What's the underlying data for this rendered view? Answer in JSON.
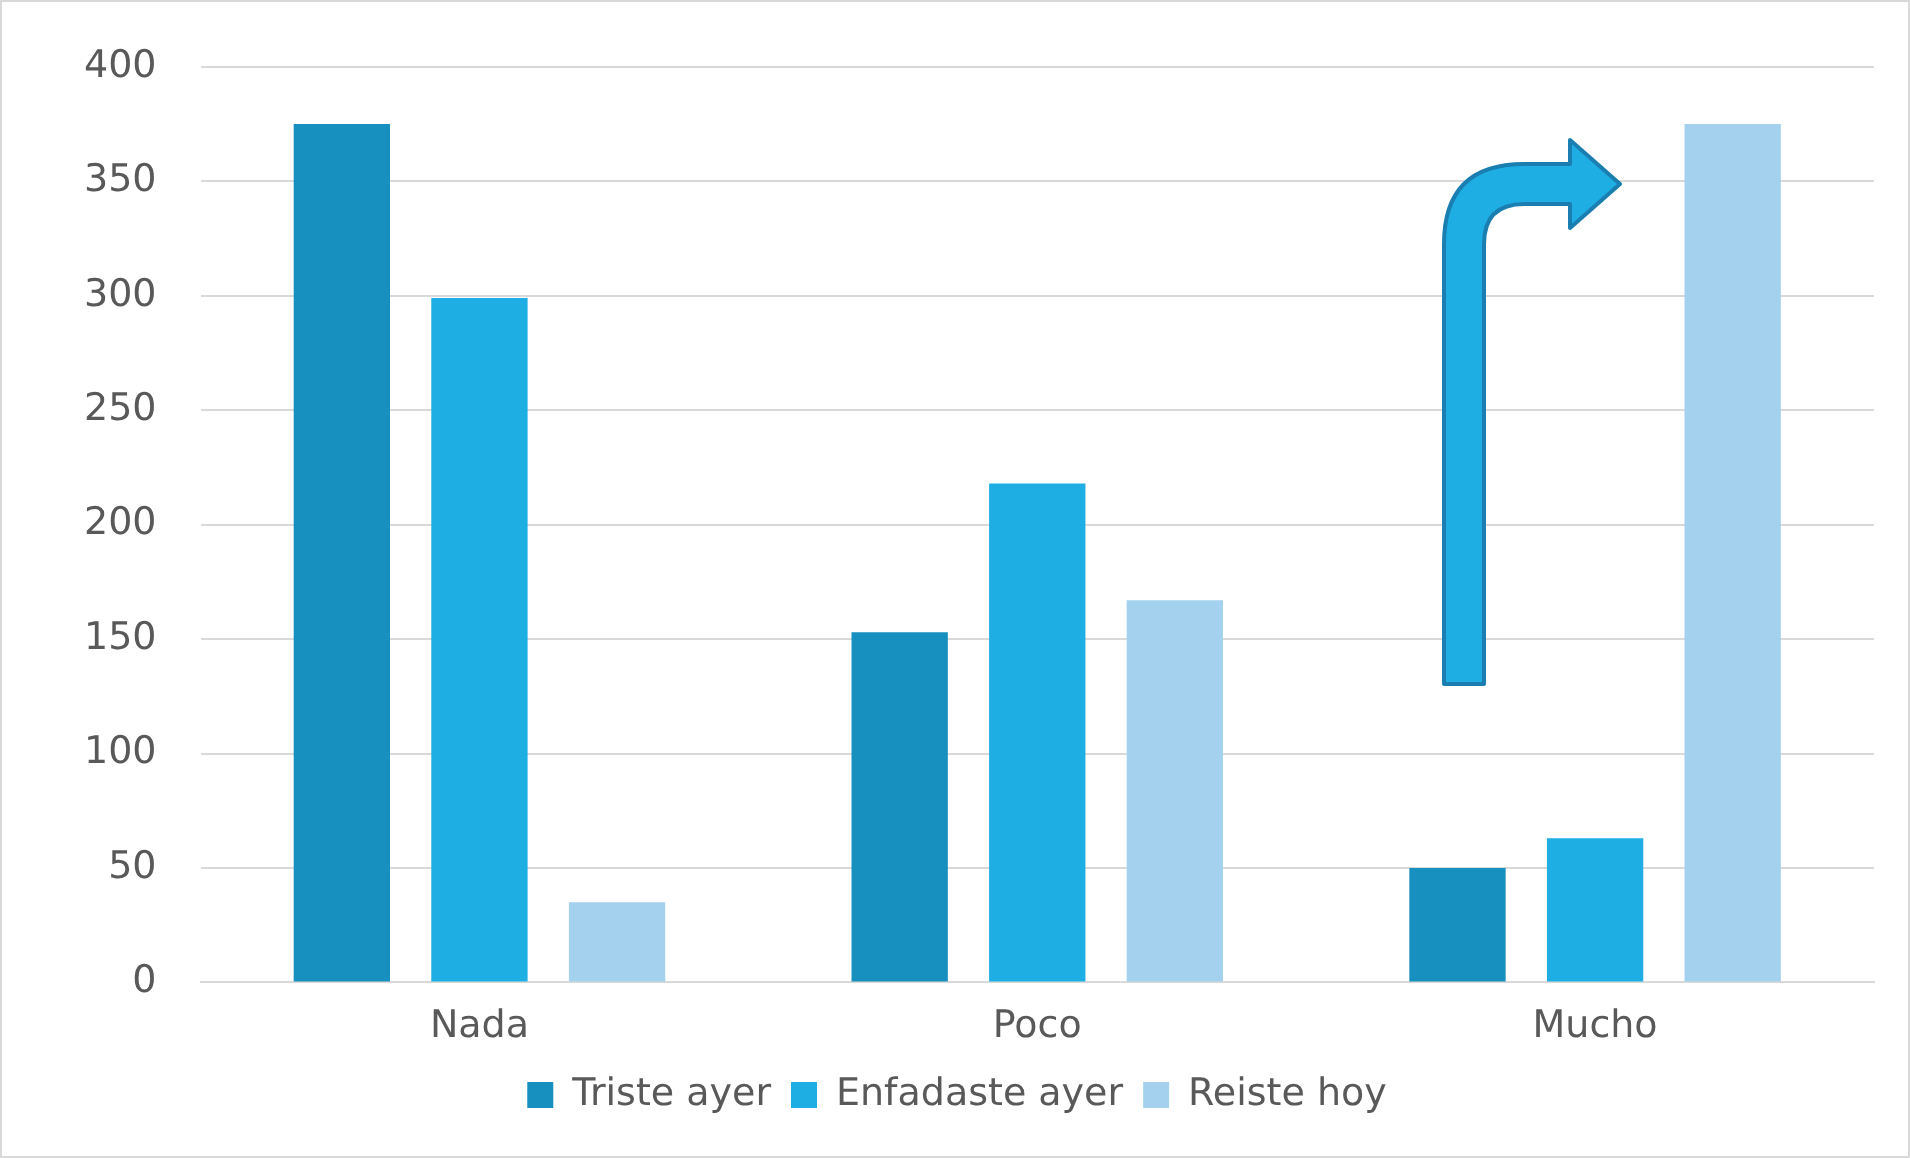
{
  "chart_data": {
    "type": "bar",
    "categories": [
      "Nada",
      "Poco",
      "Mucho"
    ],
    "series": [
      {
        "name": "Triste ayer",
        "color": "#178fbf",
        "values": [
          375,
          153,
          50
        ]
      },
      {
        "name": "Enfadaste ayer",
        "color": "#1eaee4",
        "values": [
          299,
          218,
          63
        ]
      },
      {
        "name": "Reiste hoy",
        "color": "#a3d1ee",
        "values": [
          35,
          167,
          375
        ]
      }
    ],
    "ylim": [
      0,
      400
    ],
    "yticks": [
      0,
      50,
      100,
      150,
      200,
      250,
      300,
      350,
      400
    ],
    "grid": "y",
    "legend": "bottom"
  }
}
